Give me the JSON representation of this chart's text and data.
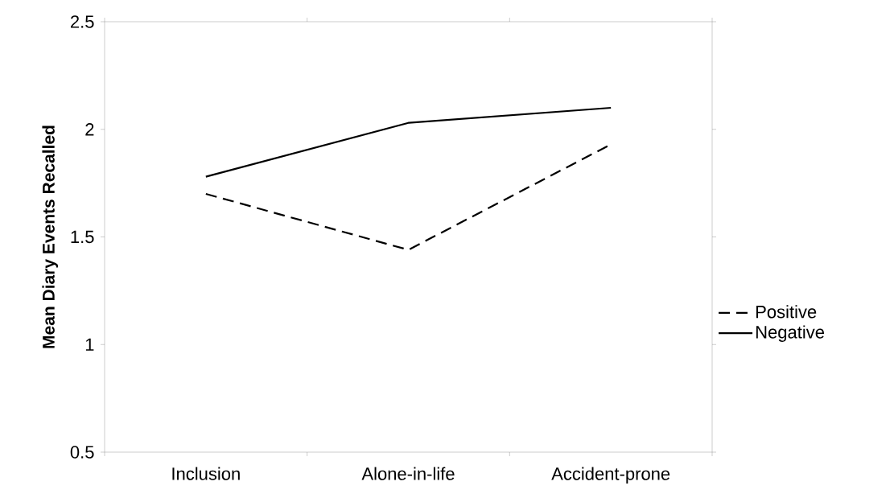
{
  "chart_data": {
    "type": "line",
    "ylabel": "Mean Diary Events Recalled",
    "categories": [
      "Inclusion",
      "Alone-in-life",
      "Accident-prone"
    ],
    "series": [
      {
        "name": "Positive",
        "color": "#000000",
        "line_style": "dashed",
        "values": [
          1.7,
          1.44,
          1.93
        ]
      },
      {
        "name": "Negative",
        "color": "#000000",
        "line_style": "solid",
        "values": [
          1.78,
          2.03,
          2.1
        ]
      }
    ],
    "ylim": [
      0.5,
      2.5
    ],
    "yticks": [
      0.5,
      1,
      1.5,
      2,
      2.5
    ],
    "grid": false,
    "legend": "right",
    "marker": "none"
  }
}
